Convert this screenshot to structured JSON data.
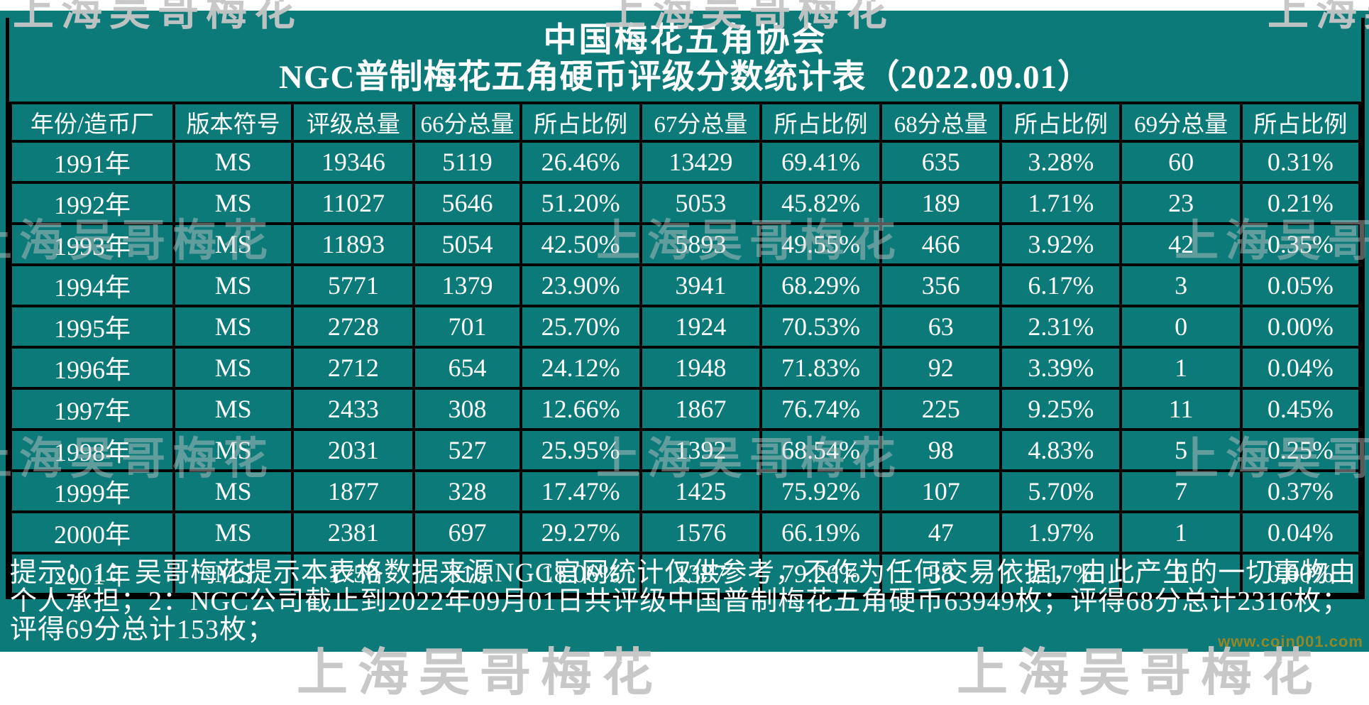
{
  "title": {
    "line1": "中国梅花五角协会",
    "line2": "NGC普制梅花五角硬币评级分数统计表（2022.09.01）"
  },
  "chart_data": {
    "type": "table",
    "title": "NGC普制梅花五角硬币评级分数统计表（2022.09.01）",
    "columns": [
      "年份/造币厂",
      "版本符号",
      "评级总量",
      "66分总量",
      "所占比例",
      "67分总量",
      "所占比例",
      "68分总量",
      "所占比例",
      "69分总量",
      "所占比例"
    ],
    "rows": [
      [
        "1991年",
        "MS",
        "19346",
        "5119",
        "26.46%",
        "13429",
        "69.41%",
        "635",
        "3.28%",
        "60",
        "0.31%"
      ],
      [
        "1992年",
        "MS",
        "11027",
        "5646",
        "51.20%",
        "5053",
        "45.82%",
        "189",
        "1.71%",
        "23",
        "0.21%"
      ],
      [
        "1993年",
        "MS",
        "11893",
        "5054",
        "42.50%",
        "5893",
        "49.55%",
        "466",
        "3.92%",
        "42",
        "0.35%"
      ],
      [
        "1994年",
        "MS",
        "5771",
        "1379",
        "23.90%",
        "3941",
        "68.29%",
        "356",
        "6.17%",
        "3",
        "0.05%"
      ],
      [
        "1995年",
        "MS",
        "2728",
        "701",
        "25.70%",
        "1924",
        "70.53%",
        "63",
        "2.31%",
        "0",
        "0.00%"
      ],
      [
        "1996年",
        "MS",
        "2712",
        "654",
        "24.12%",
        "1948",
        "71.83%",
        "92",
        "3.39%",
        "1",
        "0.04%"
      ],
      [
        "1997年",
        "MS",
        "2433",
        "308",
        "12.66%",
        "1867",
        "76.74%",
        "225",
        "9.25%",
        "11",
        "0.45%"
      ],
      [
        "1998年",
        "MS",
        "2031",
        "527",
        "25.95%",
        "1392",
        "68.54%",
        "98",
        "4.83%",
        "5",
        "0.25%"
      ],
      [
        "1999年",
        "MS",
        "1877",
        "328",
        "17.47%",
        "1425",
        "75.92%",
        "107",
        "5.70%",
        "7",
        "0.37%"
      ],
      [
        "2000年",
        "MS",
        "2381",
        "697",
        "29.27%",
        "1576",
        "66.19%",
        "47",
        "1.97%",
        "1",
        "0.04%"
      ],
      [
        "2001年",
        "MS",
        "1750",
        "316",
        "18.06%",
        "1387",
        "79.26%",
        "38",
        "2.17%",
        "0",
        "0.00%"
      ]
    ]
  },
  "footer": {
    "note": "提示：1：吴哥梅花提示本表格数据来源NGC官网统计仅供参考，不作为任何交易依据，由此产生的一切事物由个人承担；2：NGC公司截止到2022年09月01日共评级中国普制梅花五角硬币63949枚；评得68分总计2316枚；评得69分总计153枚；"
  },
  "watermarks": {
    "text": "上海吴哥梅花",
    "url": "www.coin001.com"
  },
  "colors": {
    "sheet_background": "#0d7a7a",
    "grid_border": "#000000",
    "text": "#ffffff",
    "watermark_gray": "#c6c6c6",
    "watermark_url": "#a1891f"
  }
}
